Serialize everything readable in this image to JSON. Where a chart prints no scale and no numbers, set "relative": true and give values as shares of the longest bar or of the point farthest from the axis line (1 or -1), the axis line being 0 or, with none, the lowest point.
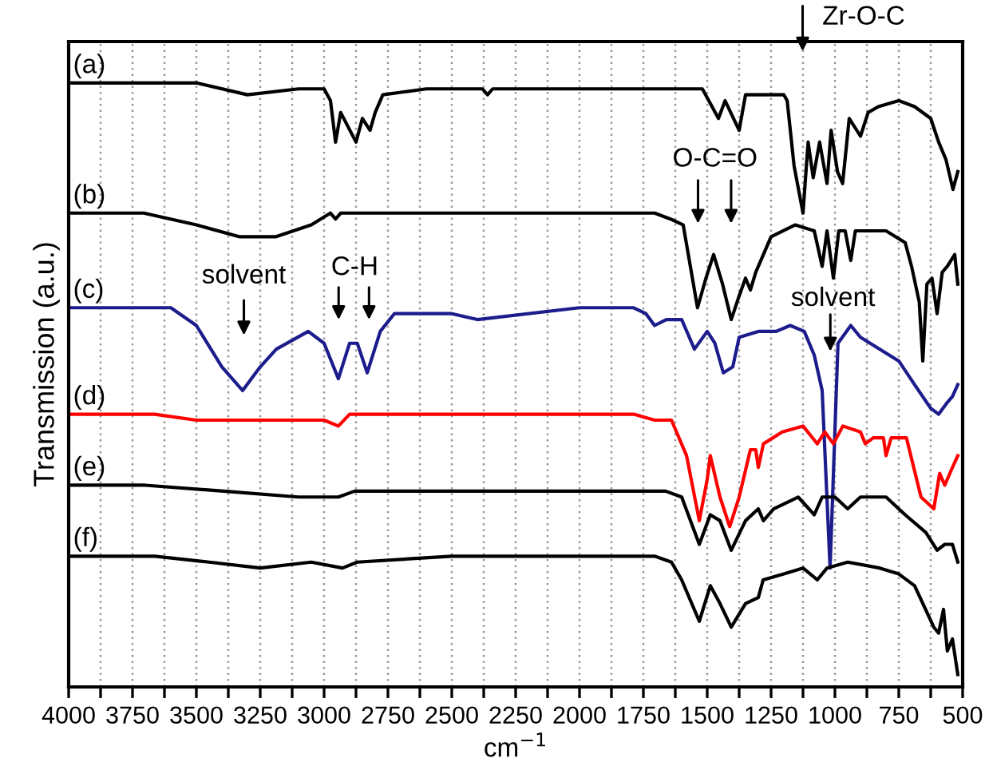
{
  "chart_data": {
    "type": "line",
    "relative": true,
    "xlabel": "cm$^{−1}$",
    "ylabel": "Transmission (a.u.)",
    "xlim": [
      4000,
      500
    ],
    "xticks": [
      4000,
      {
        "value": 3875,
        "label": null
      },
      3750,
      {
        "value": 3625,
        "label": null
      },
      3500,
      {
        "value": 3375,
        "label": null
      },
      3250,
      {
        "value": 3125,
        "label": null
      },
      3000,
      {
        "value": 2875,
        "label": null
      },
      2750,
      {
        "value": 2625,
        "label": null
      },
      2500,
      {
        "value": 2375,
        "label": null
      },
      2250,
      {
        "value": 2125,
        "label": null
      },
      2000,
      {
        "value": 1875,
        "label": null
      },
      1750,
      {
        "value": 1625,
        "label": null
      },
      1500,
      {
        "value": 1375,
        "label": null
      },
      1250,
      {
        "value": 1125,
        "label": null
      },
      1000,
      {
        "value": 875,
        "label": null
      },
      750,
      {
        "value": 625,
        "label": null
      },
      500
    ],
    "grid": "x",
    "marker": "none",
    "line_style": "solid",
    "series": [
      {
        "name": "(a)",
        "color": "#000000",
        "x": [
          4000,
          3700,
          3500,
          3300,
          3100,
          3000,
          2975,
          2955,
          2935,
          2875,
          2850,
          2820,
          2800,
          2770,
          2600,
          2380,
          2360,
          2340,
          2000,
          1700,
          1560,
          1519,
          1456,
          1430,
          1375,
          1350,
          1200,
          1187,
          1160,
          1125,
          1105,
          1085,
          1060,
          1031,
          1015,
          990,
          970,
          944,
          900,
          870,
          830,
          750,
          688,
          625,
          594,
          565,
          538,
          519
        ],
        "values": [
          1.0,
          1.0,
          1.0,
          0.98,
          0.99,
          0.99,
          0.97,
          0.9,
          0.95,
          0.9,
          0.94,
          0.92,
          0.95,
          0.98,
          0.99,
          0.99,
          0.98,
          0.99,
          0.99,
          0.99,
          0.99,
          0.99,
          0.94,
          0.97,
          0.92,
          0.98,
          0.98,
          0.97,
          0.86,
          0.78,
          0.9,
          0.84,
          0.9,
          0.83,
          0.92,
          0.85,
          0.83,
          0.94,
          0.91,
          0.95,
          0.96,
          0.97,
          0.96,
          0.94,
          0.9,
          0.87,
          0.82,
          0.85
        ]
      },
      {
        "name": "(b)",
        "color": "#000000",
        "x": [
          4000,
          3706,
          3500,
          3330,
          3190,
          3050,
          2975,
          2955,
          2935,
          2500,
          2000,
          1706,
          1644,
          1594,
          1570,
          1538,
          1505,
          1475,
          1440,
          1406,
          1375,
          1350,
          1331,
          1310,
          1250,
          1156,
          1081,
          1050,
          1031,
          1006,
          985,
          960,
          938,
          920,
          800,
          725,
          700,
          670,
          656,
          640,
          620,
          600,
          580,
          560,
          531,
          519
        ],
        "values": [
          0.78,
          0.78,
          0.76,
          0.74,
          0.74,
          0.76,
          0.78,
          0.77,
          0.78,
          0.78,
          0.78,
          0.78,
          0.77,
          0.76,
          0.7,
          0.62,
          0.67,
          0.71,
          0.66,
          0.6,
          0.64,
          0.67,
          0.65,
          0.68,
          0.74,
          0.76,
          0.75,
          0.69,
          0.75,
          0.67,
          0.75,
          0.75,
          0.7,
          0.75,
          0.75,
          0.73,
          0.69,
          0.63,
          0.53,
          0.66,
          0.67,
          0.61,
          0.68,
          0.69,
          0.71,
          0.66
        ]
      },
      {
        "name": "(c)",
        "color": "#1c1c8c",
        "x": [
          4000,
          3600,
          3500,
          3400,
          3319,
          3250,
          3187,
          3062,
          3000,
          2944,
          2900,
          2870,
          2831,
          2780,
          2725,
          2500,
          2400,
          2000,
          1788,
          1740,
          1706,
          1660,
          1600,
          1550,
          1500,
          1470,
          1437,
          1400,
          1375,
          1300,
          1230,
          1175,
          1120,
          1081,
          1050,
          1019,
          988,
          938,
          900,
          750,
          688,
          625,
          594,
          560,
          540,
          519
        ],
        "values": [
          0.62,
          0.62,
          0.59,
          0.52,
          0.48,
          0.52,
          0.55,
          0.58,
          0.56,
          0.5,
          0.56,
          0.56,
          0.51,
          0.58,
          0.61,
          0.61,
          0.6,
          0.62,
          0.62,
          0.61,
          0.59,
          0.6,
          0.6,
          0.55,
          0.58,
          0.56,
          0.51,
          0.52,
          0.57,
          0.58,
          0.58,
          0.59,
          0.58,
          0.54,
          0.48,
          0.18,
          0.56,
          0.59,
          0.57,
          0.53,
          0.49,
          0.45,
          0.44,
          0.46,
          0.47,
          0.49
        ]
      },
      {
        "name": "(d)",
        "color": "#ff0000",
        "x": [
          4000,
          3663,
          3500,
          3375,
          3000,
          2944,
          2900,
          2500,
          2000,
          1788,
          1706,
          1640,
          1581,
          1531,
          1500,
          1488,
          1450,
          1412,
          1375,
          1331,
          1310,
          1300,
          1280,
          1206,
          1125,
          1069,
          1040,
          1006,
          969,
          900,
          881,
          850,
          810,
          800,
          780,
          720,
          663,
          613,
          590,
          570,
          540,
          519
        ],
        "values": [
          0.44,
          0.44,
          0.43,
          0.43,
          0.43,
          0.42,
          0.44,
          0.44,
          0.44,
          0.44,
          0.43,
          0.43,
          0.37,
          0.26,
          0.33,
          0.37,
          0.3,
          0.25,
          0.3,
          0.38,
          0.38,
          0.35,
          0.39,
          0.41,
          0.42,
          0.39,
          0.41,
          0.39,
          0.42,
          0.41,
          0.39,
          0.4,
          0.4,
          0.37,
          0.4,
          0.4,
          0.3,
          0.28,
          0.34,
          0.32,
          0.35,
          0.37
        ]
      },
      {
        "name": "(e)",
        "color": "#000000",
        "x": [
          4000,
          3700,
          3394,
          3100,
          2975,
          2944,
          2880,
          2500,
          2000,
          1663,
          1600,
          1531,
          1488,
          1450,
          1406,
          1350,
          1300,
          1280,
          1240,
          1144,
          1081,
          1050,
          1000,
          950,
          900,
          800,
          725,
          644,
          600,
          570,
          540,
          519
        ],
        "values": [
          0.32,
          0.32,
          0.31,
          0.3,
          0.3,
          0.3,
          0.31,
          0.31,
          0.31,
          0.31,
          0.3,
          0.22,
          0.27,
          0.26,
          0.21,
          0.26,
          0.28,
          0.26,
          0.28,
          0.3,
          0.27,
          0.3,
          0.3,
          0.28,
          0.3,
          0.3,
          0.27,
          0.24,
          0.21,
          0.22,
          0.22,
          0.19
        ]
      },
      {
        "name": "(f)",
        "color": "#000000",
        "x": [
          4000,
          3663,
          3450,
          3250,
          3050,
          2928,
          2870,
          2500,
          2000,
          1706,
          1640,
          1600,
          1531,
          1488,
          1450,
          1406,
          1350,
          1300,
          1281,
          1200,
          1125,
          1069,
          1031,
          950,
          825,
          750,
          688,
          613,
          594,
          575,
          560,
          540,
          519
        ],
        "values": [
          0.2,
          0.2,
          0.19,
          0.18,
          0.19,
          0.18,
          0.19,
          0.2,
          0.2,
          0.2,
          0.19,
          0.16,
          0.09,
          0.15,
          0.12,
          0.08,
          0.12,
          0.13,
          0.16,
          0.17,
          0.18,
          0.16,
          0.18,
          0.19,
          0.18,
          0.17,
          0.15,
          0.08,
          0.07,
          0.11,
          0.04,
          0.06,
          0.0
        ]
      }
    ],
    "annotations": [
      "Zr-O-C",
      "O-C=O",
      "solvent",
      "C-H",
      "solvent"
    ]
  }
}
